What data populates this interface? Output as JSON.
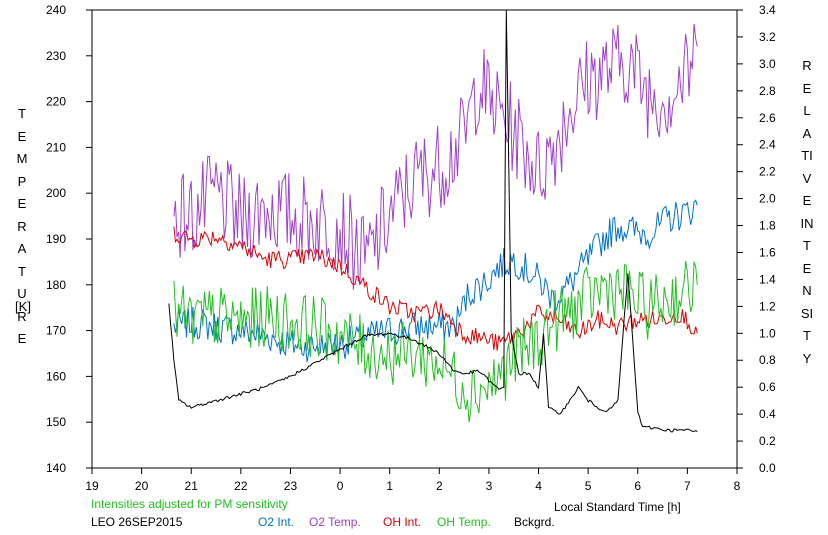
{
  "chart_data": {
    "type": "line",
    "y_left_label": "TEMPERATURE",
    "y_left_unit": "[K]",
    "y_right_label": "RELATIVE INTENSITY",
    "xlabel": "Local Standard Time [h]",
    "x_ticks": [
      "19",
      "20",
      "21",
      "22",
      "23",
      "0",
      "1",
      "2",
      "3",
      "4",
      "5",
      "6",
      "7",
      "8"
    ],
    "x_range": [
      19,
      32
    ],
    "y_left_range": [
      140,
      240
    ],
    "y_left_ticks": [
      140,
      150,
      160,
      170,
      180,
      190,
      200,
      210,
      220,
      230,
      240
    ],
    "y_right_range": [
      0.0,
      3.4
    ],
    "y_right_ticks": [
      "0.0",
      "0.2",
      "0.4",
      "0.6",
      "0.8",
      "1.0",
      "1.2",
      "1.4",
      "1.6",
      "1.8",
      "2.0",
      "2.2",
      "2.4",
      "2.6",
      "2.8",
      "3.0",
      "3.2",
      "3.4"
    ],
    "note": "Intensities adjusted for PM sensitivity",
    "station": "LEO 26SEP2015",
    "grid": false,
    "series": [
      {
        "name": "O2 Int.",
        "axis": "right",
        "color": "#0070d0",
        "x": [
          20.65,
          21.0,
          21.5,
          22.0,
          22.5,
          23.0,
          23.5,
          24.0,
          24.5,
          25.0,
          25.5,
          26.0,
          26.3,
          26.6,
          27.0,
          27.2,
          27.5,
          28.0,
          28.3,
          28.6,
          29.0,
          29.3,
          29.6,
          30.0,
          30.3,
          30.6,
          31.0,
          31.2
        ],
        "y": [
          1.05,
          1.08,
          1.05,
          1.02,
          0.98,
          0.92,
          0.9,
          0.92,
          0.97,
          1.02,
          1.05,
          1.05,
          1.05,
          1.3,
          1.4,
          1.5,
          1.55,
          1.4,
          1.25,
          1.35,
          1.55,
          1.7,
          1.8,
          1.75,
          1.75,
          1.85,
          1.9,
          1.95
        ]
      },
      {
        "name": "O2 Temp.",
        "axis": "left",
        "color": "#a040d0",
        "x": [
          20.65,
          21.0,
          21.5,
          22.0,
          22.5,
          23.0,
          23.5,
          24.0,
          24.5,
          25.0,
          25.5,
          26.0,
          26.5,
          26.8,
          27.0,
          27.2,
          27.6,
          28.0,
          28.3,
          28.6,
          29.0,
          29.4,
          29.8,
          30.2,
          30.6,
          31.0,
          31.2
        ],
        "y": [
          196,
          195,
          200,
          194,
          197,
          195,
          194,
          193,
          185,
          195,
          203,
          206,
          212,
          225,
          220,
          218,
          212,
          205,
          210,
          218,
          225,
          227,
          229,
          222,
          221,
          226,
          232
        ]
      },
      {
        "name": "OH Int.",
        "axis": "right",
        "color": "#e00000",
        "x": [
          20.65,
          21.0,
          21.5,
          22.0,
          22.5,
          23.0,
          23.5,
          24.0,
          24.5,
          25.0,
          25.5,
          26.0,
          26.5,
          27.0,
          27.2,
          27.6,
          28.0,
          28.4,
          28.8,
          29.2,
          29.6,
          30.0,
          30.4,
          30.8,
          31.0,
          31.2
        ],
        "y": [
          1.75,
          1.7,
          1.72,
          1.65,
          1.55,
          1.55,
          1.58,
          1.5,
          1.35,
          1.2,
          1.15,
          1.18,
          1.0,
          0.95,
          0.92,
          1.0,
          1.15,
          1.1,
          1.0,
          1.1,
          1.05,
          1.1,
          1.1,
          1.15,
          1.1,
          1.0
        ]
      },
      {
        "name": "OH Temp.",
        "axis": "left",
        "color": "#20c020",
        "x": [
          20.65,
          21.0,
          21.5,
          22.0,
          22.5,
          23.0,
          23.5,
          24.0,
          24.5,
          25.0,
          25.5,
          26.0,
          26.3,
          26.6,
          27.0,
          27.2,
          27.6,
          28.0,
          28.3,
          28.6,
          29.0,
          29.4,
          29.8,
          30.2,
          30.6,
          31.0,
          31.2
        ],
        "y": [
          174,
          172,
          173,
          172,
          173,
          172,
          171,
          169,
          166,
          165,
          165,
          163,
          160,
          157,
          158,
          160,
          165,
          168,
          172,
          174,
          177,
          180,
          178,
          175,
          177,
          179,
          180
        ]
      },
      {
        "name": "Bckgrd.",
        "axis": "right",
        "color": "#000000",
        "x": [
          20.55,
          20.65,
          20.75,
          21.0,
          21.5,
          22.0,
          22.5,
          23.0,
          23.5,
          24.0,
          24.5,
          25.0,
          25.5,
          26.0,
          26.3,
          26.5,
          26.8,
          27.0,
          27.2,
          27.3,
          27.35,
          27.45,
          27.6,
          27.8,
          28.0,
          28.1,
          28.2,
          28.4,
          28.6,
          28.8,
          29.0,
          29.2,
          29.4,
          29.6,
          29.8,
          30.0,
          30.1,
          30.3,
          30.6,
          31.0,
          31.2
        ],
        "y": [
          1.22,
          0.8,
          0.5,
          0.45,
          0.5,
          0.55,
          0.6,
          0.68,
          0.78,
          0.88,
          0.98,
          1.0,
          0.95,
          0.85,
          0.72,
          0.7,
          0.72,
          0.65,
          0.58,
          0.6,
          3.5,
          1.0,
          0.7,
          0.7,
          0.6,
          1.0,
          0.45,
          0.4,
          0.48,
          0.6,
          0.5,
          0.45,
          0.42,
          0.5,
          1.45,
          0.42,
          0.3,
          0.3,
          0.28,
          0.28,
          0.27
        ]
      }
    ]
  }
}
